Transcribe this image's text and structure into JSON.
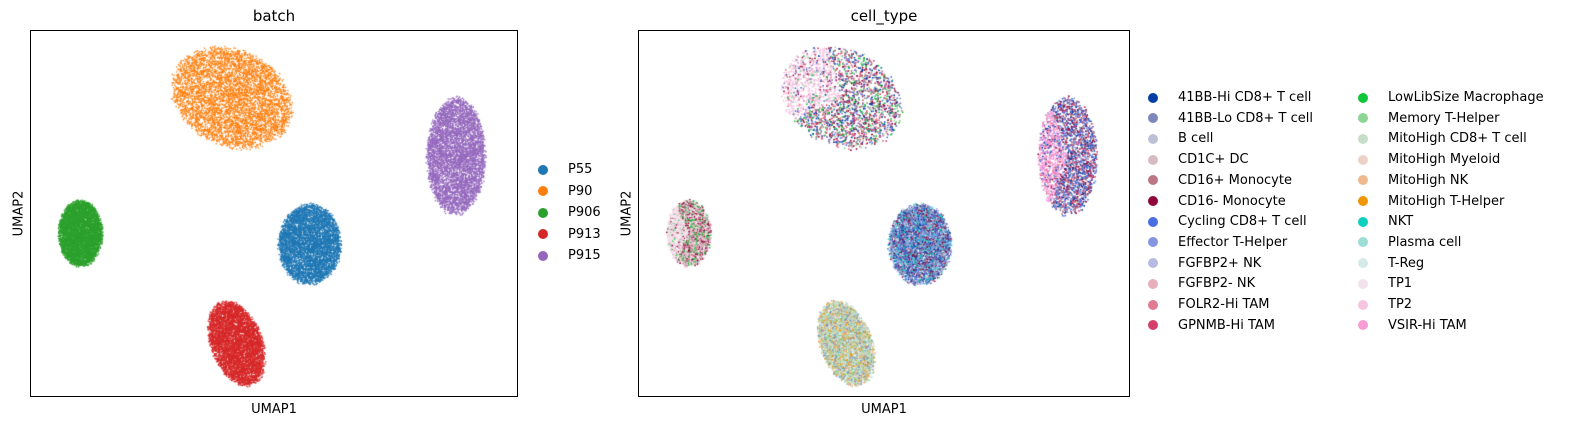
{
  "chart_data": [
    {
      "type": "scatter",
      "title": "batch",
      "xlabel": "UMAP1",
      "ylabel": "UMAP2",
      "grid": false,
      "legend_position": "right",
      "legend": [
        {
          "label": "P55",
          "color": "#1f77b4"
        },
        {
          "label": "P90",
          "color": "#ff7f0e"
        },
        {
          "label": "P906",
          "color": "#2ca02c"
        },
        {
          "label": "P913",
          "color": "#d62728"
        },
        {
          "label": "P915",
          "color": "#9467bd"
        }
      ],
      "clusters": [
        {
          "series": "P90",
          "color": "#ff7f0e",
          "cx": 0.41,
          "cy": 0.82,
          "rx": 0.17,
          "ry": 0.13,
          "angle": -25
        },
        {
          "series": "P915",
          "color": "#9467bd",
          "cx": 0.87,
          "cy": 0.66,
          "rx": 0.08,
          "ry": 0.16,
          "angle": 0
        },
        {
          "series": "P906",
          "color": "#2ca02c",
          "cx": 0.1,
          "cy": 0.45,
          "rx": 0.06,
          "ry": 0.09,
          "angle": 0
        },
        {
          "series": "P55",
          "color": "#1f77b4",
          "cx": 0.57,
          "cy": 0.42,
          "rx": 0.085,
          "ry": 0.11,
          "angle": 0
        },
        {
          "series": "P913",
          "color": "#d62728",
          "cx": 0.42,
          "cy": 0.15,
          "rx": 0.07,
          "ry": 0.12,
          "angle": 20
        }
      ]
    },
    {
      "type": "scatter",
      "title": "cell_type",
      "xlabel": "UMAP1",
      "ylabel": "UMAP2",
      "grid": false,
      "legend_position": "right",
      "legend": [
        {
          "label": "41BB-Hi CD8+ T cell",
          "color": "#023fa5"
        },
        {
          "label": "41BB-Lo CD8+ T cell",
          "color": "#7d87b9"
        },
        {
          "label": "B cell",
          "color": "#bec1d4"
        },
        {
          "label": "CD1C+ DC",
          "color": "#d6bcc0"
        },
        {
          "label": "CD16+ Monocyte",
          "color": "#bb7784"
        },
        {
          "label": "CD16- Monocyte",
          "color": "#8e063b"
        },
        {
          "label": "Cycling CD8+ T cell",
          "color": "#4a6fe3"
        },
        {
          "label": "Effector T-Helper",
          "color": "#8595e1"
        },
        {
          "label": "FGFBP2+ NK",
          "color": "#b5bbe3"
        },
        {
          "label": "FGFBP2- NK",
          "color": "#e6afb9"
        },
        {
          "label": "FOLR2-Hi TAM",
          "color": "#e07b91"
        },
        {
          "label": "GPNMB-Hi TAM",
          "color": "#d33f6a"
        },
        {
          "label": "LowLibSize Macrophage",
          "color": "#11c638"
        },
        {
          "label": "Memory T-Helper",
          "color": "#8dd593"
        },
        {
          "label": "MitoHigh CD8+ T cell",
          "color": "#c6dec7"
        },
        {
          "label": "MitoHigh Myeloid",
          "color": "#ead3c6"
        },
        {
          "label": "MitoHigh NK",
          "color": "#f0b98d"
        },
        {
          "label": "MitoHigh T-Helper",
          "color": "#ef9708"
        },
        {
          "label": "NKT",
          "color": "#0fcfc0"
        },
        {
          "label": "Plasma cell",
          "color": "#9cded6"
        },
        {
          "label": "T-Reg",
          "color": "#d5eae7"
        },
        {
          "label": "TP1",
          "color": "#f3e1eb"
        },
        {
          "label": "TP2",
          "color": "#f6c4e1"
        },
        {
          "label": "VSIR-Hi TAM",
          "color": "#f79cd4"
        }
      ],
      "clusters": [
        {
          "cx": 0.41,
          "cy": 0.82,
          "rx": 0.17,
          "ry": 0.13,
          "angle": -25,
          "mix": [
            "#8e063b",
            "#bb7784",
            "#7d87b9",
            "#11c638",
            "#d33f6a",
            "#4a6fe3",
            "#8dd593",
            "#e07b91",
            "#023fa5"
          ],
          "left_tint": "#f6c4e1"
        },
        {
          "cx": 0.87,
          "cy": 0.66,
          "rx": 0.08,
          "ry": 0.16,
          "angle": 0,
          "mix": [
            "#023fa5",
            "#4a6fe3",
            "#7d87b9",
            "#8595e1",
            "#d33f6a",
            "#8e063b",
            "#bb7784"
          ],
          "left_tint": "#f79cd4"
        },
        {
          "cx": 0.1,
          "cy": 0.45,
          "rx": 0.06,
          "ry": 0.09,
          "angle": 0,
          "mix": [
            "#f3e1eb",
            "#f6c4e1",
            "#bb7784",
            "#11c638",
            "#8e063b",
            "#d6bcc0"
          ],
          "left_tint": "#f3e1eb"
        },
        {
          "cx": 0.57,
          "cy": 0.42,
          "rx": 0.085,
          "ry": 0.11,
          "angle": 0,
          "mix": [
            "#7d87b9",
            "#023fa5",
            "#4a6fe3",
            "#8595e1",
            "#0fcfc0",
            "#bec1d4",
            "#8e063b"
          ],
          "left_tint": ""
        },
        {
          "cx": 0.42,
          "cy": 0.15,
          "rx": 0.07,
          "ry": 0.12,
          "angle": 20,
          "mix": [
            "#9cded6",
            "#d5eae7",
            "#8dd593",
            "#f0b98d",
            "#ef9708",
            "#7d87b9",
            "#c6dec7"
          ],
          "left_tint": ""
        }
      ]
    }
  ]
}
